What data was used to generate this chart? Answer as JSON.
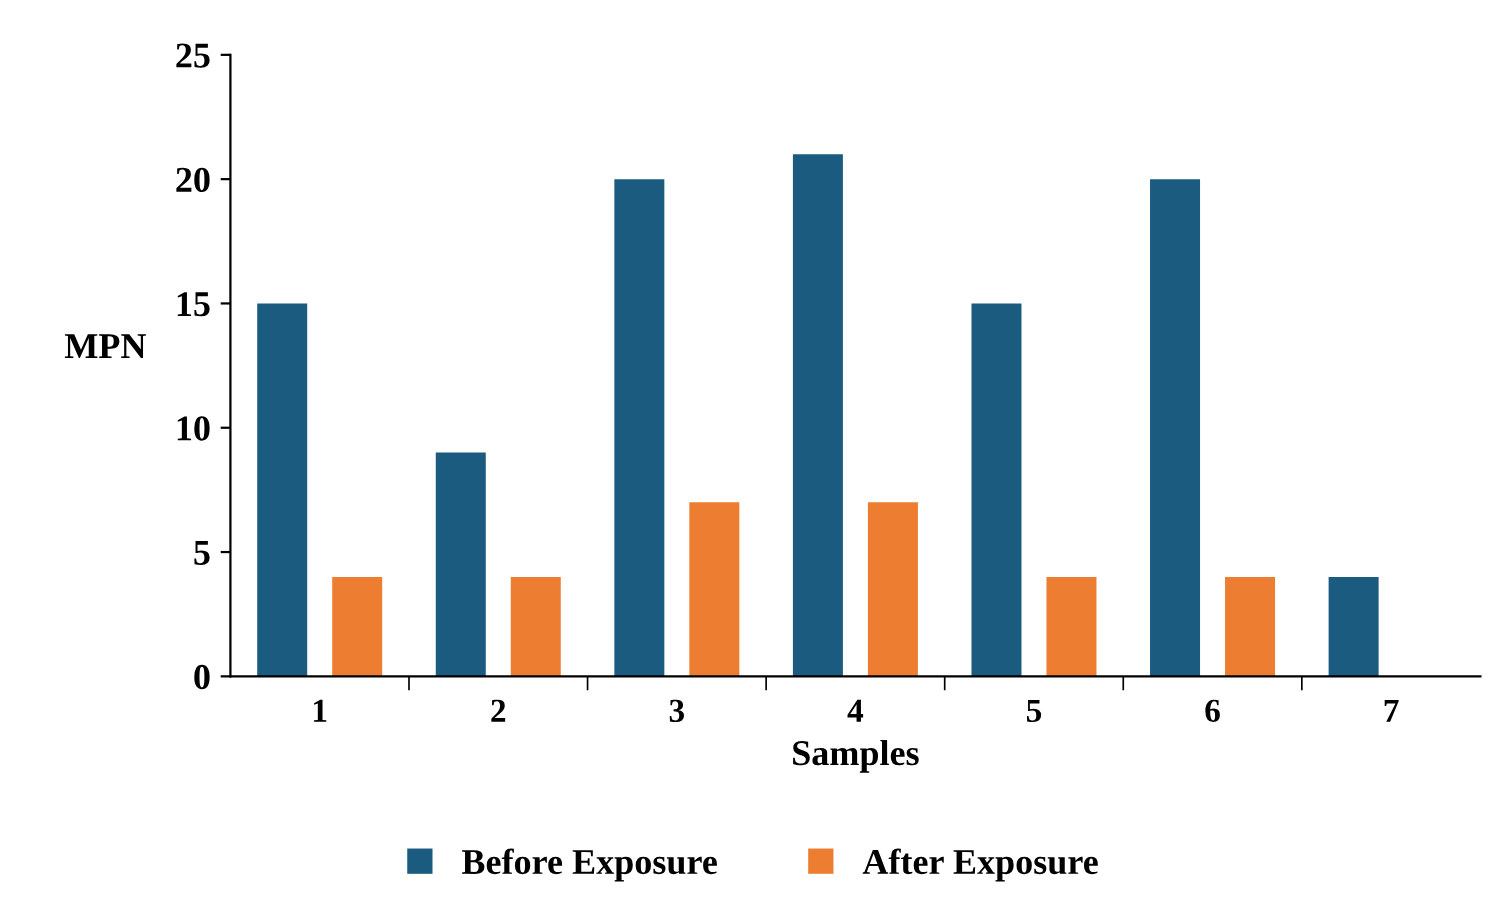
{
  "chart_data": {
    "type": "bar",
    "xlabel": "Samples",
    "ylabel": "MPN",
    "categories": [
      "1",
      "2",
      "3",
      "4",
      "5",
      "6",
      "7"
    ],
    "series": [
      {
        "name": "Before Exposure",
        "color": "#1b5b80",
        "values": [
          15,
          9,
          20,
          21,
          15,
          20,
          4
        ]
      },
      {
        "name": "After Exposure",
        "color": "#ed7d31",
        "values": [
          4,
          4,
          7,
          7,
          4,
          4,
          null
        ]
      }
    ],
    "ylim": [
      0,
      25
    ],
    "yticks": [
      0,
      5,
      10,
      15,
      20,
      25
    ],
    "grid": false,
    "legend": "bottom"
  }
}
